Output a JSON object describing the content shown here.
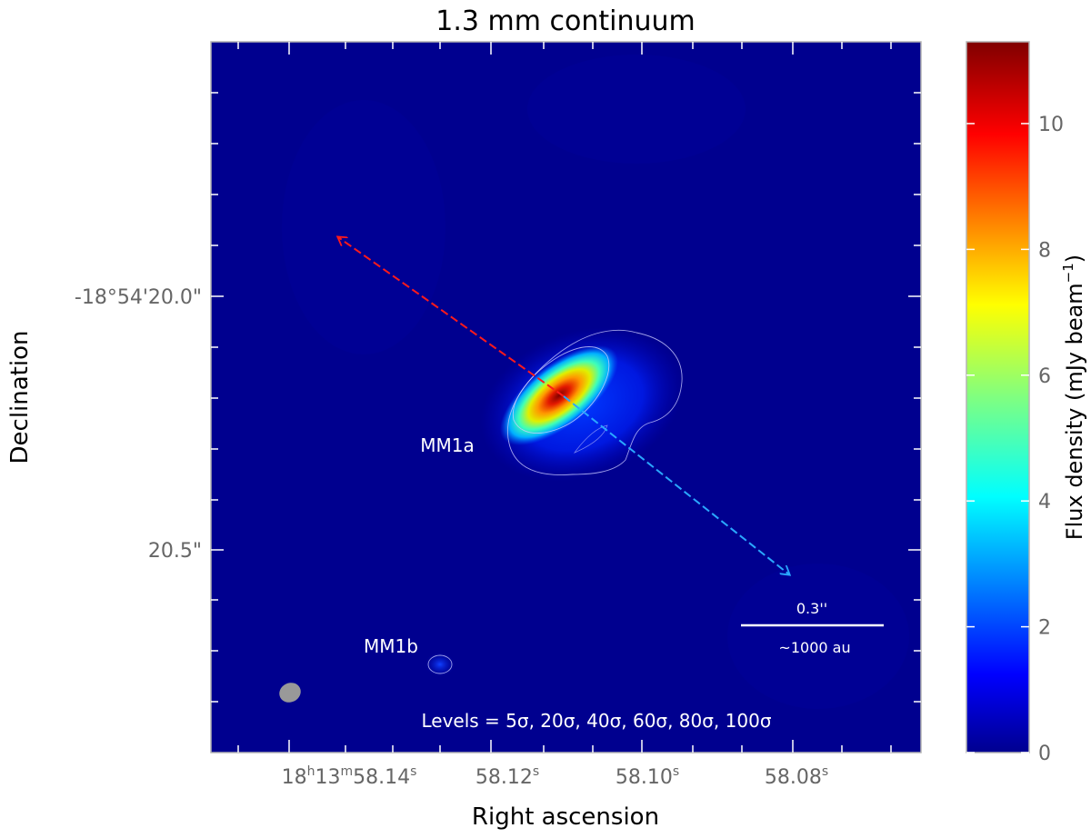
{
  "chart_data": {
    "type": "heatmap",
    "title": "1.3 mm continuum",
    "xlabel": "Right ascension",
    "ylabel": "Declination",
    "x_ticks": [
      {
        "h": "18",
        "m": "13",
        "s": "58.14",
        "label": "58.14",
        "value_sec": 58.14
      },
      {
        "label": "58.12",
        "value_sec": 58.12
      },
      {
        "label": "58.10",
        "value_sec": 58.1
      },
      {
        "label": "58.08",
        "value_sec": 58.08
      }
    ],
    "y_ticks": [
      {
        "label": "-18°54'20.0\"",
        "value_arcsec": 20.0
      },
      {
        "label": "20.5\"",
        "value_arcsec": 20.5
      }
    ],
    "colorbar": {
      "label": "Flux density (mJy beam",
      "label_sup": "−1",
      "label_tail": ")",
      "range": [
        0,
        11.3
      ],
      "ticks": [
        0,
        2,
        4,
        6,
        8,
        10
      ],
      "colormap": "jet"
    },
    "contour_levels_text": "Levels = 5σ, 20σ, 40σ, 60σ, 80σ, 100σ",
    "sources": [
      {
        "name": "MM1a",
        "ra_sec": 58.111,
        "dec_arcsec": 20.24,
        "peak": 11.3
      },
      {
        "name": "MM1b",
        "ra_sec": 58.137,
        "dec_arcsec": 20.75,
        "peak": 0.9
      }
    ],
    "outflow": {
      "red_lobe_end": {
        "ra_sec": 58.133,
        "dec_arcsec": 19.89
      },
      "blue_lobe_end": {
        "ra_sec": 58.082,
        "dec_arcsec": 20.55
      },
      "red_color": "#ff1a1a",
      "blue_color": "#2aa8ff"
    },
    "scale_bar": {
      "angular": "0.3''",
      "physical": "~1000 au"
    },
    "beam_color": "#999999",
    "background_color": "#00008f"
  }
}
